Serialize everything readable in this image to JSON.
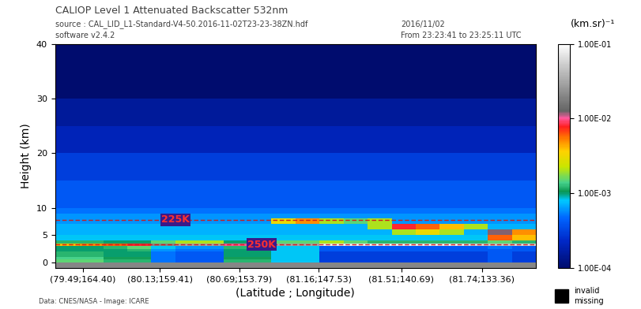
{
  "chart_data": {
    "type": "heatmap",
    "title": "CALIOP Level 1 Attenuated Backscatter 532nm",
    "subtitle": [
      "source : CAL_LID_L1-Standard-V4-50.2016-11-02T23-23-38ZN.hdf",
      "software v2.4.2"
    ],
    "date": [
      "2016/11/02",
      "From 23:23:41 to 23:25:11 UTC"
    ],
    "x_label": "(Latitude ; Longitude)",
    "y_label": "Height (km)",
    "credit": "Data: CNES/NASA - Image: ICARE",
    "xlim": [
      0,
      100
    ],
    "xticks": [
      {
        "value": 5.8,
        "label": "(79.49;164.40)"
      },
      {
        "value": 21.8,
        "label": "(80.13;159.41)"
      },
      {
        "value": 38.3,
        "label": "(80.69;153.79)"
      },
      {
        "value": 54.8,
        "label": "(81.16;147.53)"
      },
      {
        "value": 72.0,
        "label": "(81.51;140.69)"
      },
      {
        "value": 88.8,
        "label": "(81.74;133.36)"
      }
    ],
    "ylim": [
      -1,
      40
    ],
    "yticks": [
      0,
      5,
      10,
      20,
      30,
      40
    ],
    "x_edges": [
      0,
      5,
      10,
      15,
      20,
      25,
      30,
      35,
      40,
      45,
      50,
      55,
      60,
      65,
      70,
      75,
      80,
      85,
      90,
      95,
      100
    ],
    "height_edges": [
      -1,
      0,
      0.5,
      1,
      2,
      2.5,
      3,
      3.5,
      4,
      5,
      6,
      7,
      8,
      9,
      10,
      12,
      15,
      20,
      25,
      30,
      40
    ],
    "cells": [
      [
        0.02,
        0.02,
        0.02,
        0.02,
        0.02,
        0.02,
        0.02,
        0.02,
        0.02,
        0.02,
        0.02,
        0.02,
        0.02,
        0.02,
        0.02,
        0.02,
        0.02,
        0.02,
        0.02,
        0.02
      ],
      [
        0.0015,
        0.0015,
        0.0012,
        0.0012,
        0.0005,
        0.0004,
        0.0004,
        0.0012,
        0.0012,
        0.0008,
        0.0008,
        0.0003,
        0.0003,
        0.0003,
        0.0003,
        0.0003,
        0.0003,
        0.0003,
        0.0004,
        0.0003
      ],
      [
        0.0014,
        0.0014,
        0.0011,
        0.0011,
        0.0005,
        0.0004,
        0.0004,
        0.0011,
        0.0011,
        0.0008,
        0.0008,
        0.0003,
        0.0003,
        0.0003,
        0.0003,
        0.0003,
        0.0003,
        0.0003,
        0.0004,
        0.0003
      ],
      [
        0.0012,
        0.0012,
        0.001,
        0.001,
        0.0005,
        0.0004,
        0.0004,
        0.001,
        0.001,
        0.0008,
        0.0008,
        0.0003,
        0.0003,
        0.0003,
        0.0003,
        0.0003,
        0.0003,
        0.0003,
        0.0004,
        0.0003
      ],
      [
        0.001,
        0.001,
        0.001,
        0.0012,
        0.0006,
        0.0005,
        0.0005,
        0.001,
        0.001,
        0.0008,
        0.0008,
        0.0004,
        0.0004,
        0.0004,
        0.0004,
        0.0004,
        0.0004,
        0.0004,
        0.0004,
        0.0004
      ],
      [
        0.001,
        0.001,
        0.0012,
        0.0015,
        0.0008,
        0.0006,
        0.0006,
        0.0012,
        0.001,
        0.0008,
        0.0008,
        0.0004,
        0.0004,
        0.0004,
        0.0004,
        0.0004,
        0.0004,
        0.0004,
        0.0005,
        0.0004
      ],
      [
        0.004,
        0.005,
        0.006,
        0.008,
        0.02,
        0.03,
        0.03,
        0.01,
        0.006,
        0.03,
        0.03,
        0.08,
        0.08,
        0.08,
        0.08,
        0.08,
        0.08,
        0.06,
        0.05,
        0.06
      ],
      [
        0.0012,
        0.0012,
        0.001,
        0.001,
        0.0015,
        0.002,
        0.002,
        0.001,
        0.001,
        0.0015,
        0.0015,
        0.002,
        0.0015,
        0.0012,
        0.0012,
        0.0012,
        0.0012,
        0.0012,
        0.0015,
        0.0012
      ],
      [
        0.0008,
        0.0008,
        0.0008,
        0.0008,
        0.0008,
        0.0008,
        0.0008,
        0.0008,
        0.0008,
        0.0008,
        0.0008,
        0.0008,
        0.0008,
        0.0008,
        0.0008,
        0.0008,
        0.0008,
        0.0008,
        0.006,
        0.004
      ],
      [
        0.0007,
        0.0007,
        0.0007,
        0.0007,
        0.0007,
        0.0007,
        0.0007,
        0.0007,
        0.0007,
        0.0007,
        0.0007,
        0.0007,
        0.0007,
        0.0007,
        0.002,
        0.003,
        0.002,
        0.0007,
        0.012,
        0.005
      ],
      [
        0.0007,
        0.0007,
        0.0007,
        0.0007,
        0.0007,
        0.0007,
        0.0007,
        0.0007,
        0.0007,
        0.0007,
        0.0007,
        0.0007,
        0.0007,
        0.002,
        0.008,
        0.006,
        0.004,
        0.002,
        0.0007,
        0.0007
      ],
      [
        0.0006,
        0.0006,
        0.0006,
        0.0006,
        0.0006,
        0.0006,
        0.0006,
        0.0006,
        0.0006,
        0.003,
        0.005,
        0.002,
        0.0015,
        0.002,
        0.0006,
        0.0006,
        0.0006,
        0.0006,
        0.0006,
        0.0006
      ],
      [
        0.0006,
        0.0006,
        0.0006,
        0.0006,
        0.0006,
        0.0006,
        0.0006,
        0.0006,
        0.0006,
        0.0006,
        0.0006,
        0.0006,
        0.0006,
        0.0006,
        0.0006,
        0.0006,
        0.0006,
        0.0006,
        0.0006,
        0.0006
      ],
      [
        0.0005,
        0.0005,
        0.0005,
        0.0005,
        0.0005,
        0.0005,
        0.0005,
        0.0005,
        0.0005,
        0.0005,
        0.0005,
        0.0005,
        0.0005,
        0.0005,
        0.0005,
        0.0005,
        0.0005,
        0.0005,
        0.0005,
        0.0005
      ],
      [
        0.0004,
        0.0004,
        0.0004,
        0.0004,
        0.0004,
        0.0004,
        0.0004,
        0.0004,
        0.0004,
        0.0004,
        0.0004,
        0.0004,
        0.0004,
        0.0004,
        0.0004,
        0.0004,
        0.0004,
        0.0004,
        0.0004,
        0.0004
      ],
      [
        0.0004,
        0.0004,
        0.0004,
        0.0004,
        0.0004,
        0.0004,
        0.0004,
        0.0004,
        0.0004,
        0.0004,
        0.0004,
        0.0004,
        0.0004,
        0.0004,
        0.0004,
        0.0004,
        0.0004,
        0.0004,
        0.0004,
        0.0004
      ],
      [
        0.0003,
        0.0003,
        0.0003,
        0.0003,
        0.0003,
        0.0003,
        0.0003,
        0.0003,
        0.0003,
        0.0003,
        0.0003,
        0.0003,
        0.0003,
        0.0003,
        0.0003,
        0.0003,
        0.0003,
        0.0003,
        0.0003,
        0.0003
      ],
      [
        0.0002,
        0.0002,
        0.0002,
        0.0002,
        0.0002,
        0.0002,
        0.0002,
        0.0002,
        0.0002,
        0.0002,
        0.0002,
        0.0002,
        0.0002,
        0.0002,
        0.0002,
        0.0002,
        0.0002,
        0.0002,
        0.0002,
        0.0002
      ],
      [
        0.00015,
        0.00015,
        0.00015,
        0.00015,
        0.00015,
        0.00015,
        0.00015,
        0.00015,
        0.00015,
        0.00015,
        0.00015,
        0.00015,
        0.00015,
        0.00015,
        0.00015,
        0.00015,
        0.00015,
        0.00015,
        0.00015,
        0.00015
      ],
      [
        0.0001,
        0.0001,
        0.0001,
        0.0001,
        0.0001,
        0.0001,
        0.0001,
        0.0001,
        0.0001,
        0.0001,
        0.0001,
        0.0001,
        0.0001,
        0.0001,
        0.0001,
        0.0001,
        0.0001,
        0.0001,
        0.0001,
        0.0001
      ]
    ],
    "isotherms": [
      {
        "label": "225K",
        "height": 7.8
      },
      {
        "label": "250K",
        "height": 3.3
      }
    ],
    "colorbar": {
      "label": "(km.sr)⁻¹",
      "range": [
        0.0001,
        0.1
      ],
      "ticks": [
        {
          "value": 0.1,
          "label": "1.00E-01"
        },
        {
          "value": 0.01,
          "label": "1.00E-02"
        },
        {
          "value": 0.001,
          "label": "1.00E-03"
        },
        {
          "value": 0.0001,
          "label": "1.00E-04"
        }
      ],
      "log": true
    },
    "missing_legend": [
      "invalid",
      "missing"
    ]
  }
}
